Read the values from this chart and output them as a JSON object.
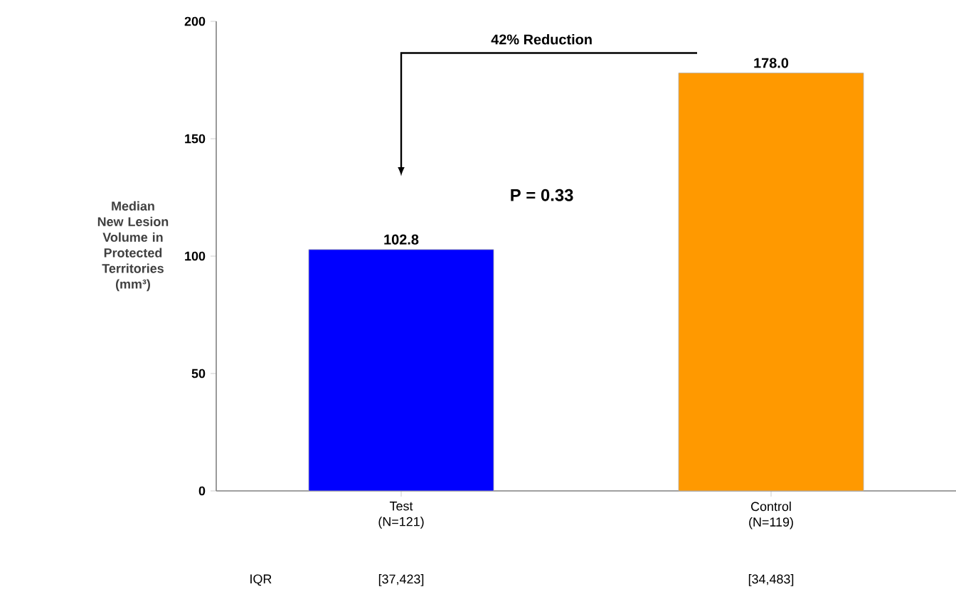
{
  "chart_data": {
    "type": "bar",
    "categories": [
      "Test (N=121)",
      "Control (N=119)"
    ],
    "values": [
      102.8,
      178.0
    ],
    "value_labels": [
      "102.8",
      "178.0"
    ],
    "colors": [
      "#0000ff",
      "#ff9900"
    ],
    "ylabel": "Median New Lesion Volume in Protected Territories (mm³)",
    "ylim": [
      0,
      200
    ],
    "yticks": [
      0,
      50,
      100,
      150,
      200
    ],
    "grid": false,
    "annotations": [
      "42% Reduction",
      "P = 0.33",
      "IQR",
      "[37,423]",
      "[34,483]"
    ]
  }
}
